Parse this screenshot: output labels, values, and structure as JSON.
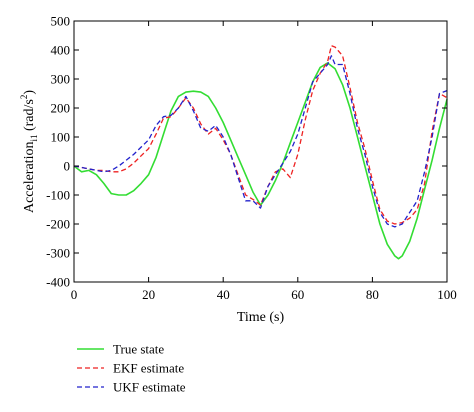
{
  "chart_data": {
    "type": "line",
    "xlabel": "Time (s)",
    "ylabel": {
      "prefix": "Acceleration",
      "subscript": "i1",
      "unit_open": " (rad/s",
      "unit_sup": "2",
      "unit_close": ")"
    },
    "xlim": [
      0,
      100
    ],
    "ylim": [
      -400,
      500
    ],
    "xticks": [
      0,
      20,
      40,
      60,
      80,
      100
    ],
    "yticks": [
      -400,
      -300,
      -200,
      -100,
      0,
      100,
      200,
      300,
      400,
      500
    ],
    "grid": false,
    "legend_position": "below",
    "series": [
      {
        "name": "True state",
        "color": "#33dd33",
        "style": "solid",
        "x": [
          0,
          2,
          4,
          6,
          8,
          10,
          12,
          14,
          16,
          18,
          20,
          22,
          24,
          26,
          28,
          30,
          32,
          34,
          36,
          38,
          40,
          42,
          44,
          46,
          48,
          50,
          52,
          54,
          56,
          58,
          60,
          62,
          64,
          66,
          68,
          70,
          72,
          74,
          76,
          78,
          80,
          82,
          84,
          86,
          87,
          88,
          90,
          92,
          94,
          96,
          98,
          100
        ],
        "y": [
          0,
          -20,
          -15,
          -30,
          -60,
          -95,
          -100,
          -100,
          -85,
          -60,
          -30,
          30,
          110,
          190,
          240,
          255,
          258,
          255,
          240,
          200,
          150,
          90,
          30,
          -30,
          -90,
          -135,
          -100,
          -50,
          10,
          80,
          150,
          220,
          290,
          340,
          355,
          335,
          280,
          200,
          100,
          0,
          -100,
          -200,
          -270,
          -310,
          -320,
          -310,
          -260,
          -180,
          -80,
          20,
          130,
          230
        ]
      },
      {
        "name": "EKF estimate",
        "color": "#ee2222",
        "style": "dashed",
        "x": [
          0,
          2,
          4,
          6,
          8,
          10,
          12,
          14,
          16,
          18,
          20,
          22,
          24,
          26,
          28,
          30,
          32,
          34,
          36,
          38,
          40,
          42,
          44,
          46,
          48,
          50,
          52,
          54,
          56,
          58,
          60,
          62,
          64,
          66,
          68,
          69,
          70,
          72,
          74,
          76,
          78,
          80,
          82,
          84,
          86,
          88,
          90,
          92,
          94,
          96,
          98,
          100
        ],
        "y": [
          0,
          -5,
          -10,
          -15,
          -15,
          -20,
          -20,
          -10,
          10,
          35,
          60,
          110,
          165,
          170,
          200,
          235,
          200,
          145,
          110,
          130,
          90,
          40,
          -30,
          -100,
          -115,
          -135,
          -70,
          -20,
          -10,
          -40,
          40,
          160,
          260,
          320,
          360,
          415,
          410,
          380,
          270,
          150,
          60,
          -50,
          -150,
          -190,
          -200,
          -195,
          -180,
          -150,
          -60,
          120,
          250,
          235
        ]
      },
      {
        "name": "UKF estimate",
        "color": "#2222cc",
        "style": "dashed",
        "x": [
          0,
          2,
          4,
          6,
          8,
          10,
          12,
          14,
          16,
          18,
          20,
          22,
          24,
          26,
          28,
          30,
          32,
          34,
          36,
          38,
          40,
          42,
          44,
          46,
          48,
          50,
          52,
          54,
          56,
          58,
          60,
          62,
          64,
          66,
          68,
          69,
          70,
          72,
          74,
          76,
          78,
          80,
          82,
          84,
          86,
          88,
          90,
          92,
          94,
          96,
          98,
          100
        ],
        "y": [
          0,
          -5,
          -10,
          -15,
          -20,
          -15,
          0,
          20,
          40,
          65,
          90,
          140,
          170,
          175,
          200,
          240,
          190,
          130,
          120,
          140,
          100,
          40,
          -40,
          -120,
          -120,
          -145,
          -70,
          -30,
          10,
          50,
          110,
          200,
          290,
          320,
          350,
          380,
          350,
          350,
          250,
          130,
          40,
          -70,
          -160,
          -200,
          -210,
          -200,
          -160,
          -120,
          -20,
          100,
          250,
          260
        ]
      }
    ]
  }
}
